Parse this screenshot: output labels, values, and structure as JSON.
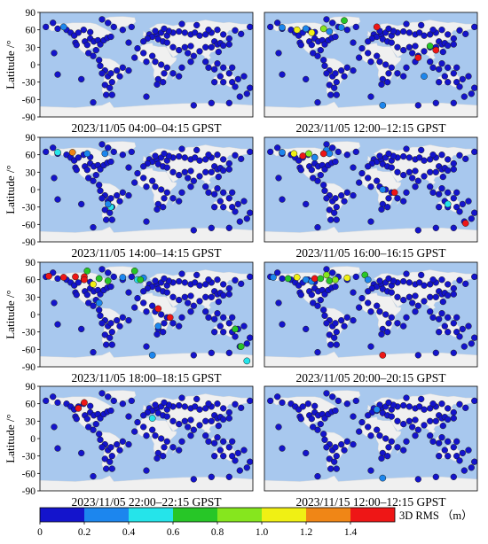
{
  "ylabel": "Latitude /°",
  "lat_ticks": [
    90,
    60,
    30,
    0,
    -30,
    -60,
    -90
  ],
  "colors": {
    "ocean": "#a8c8ee",
    "land": "#f0f0f0",
    "border": "#d8d8d8"
  },
  "colorbar": {
    "label": "3D RMS （m）",
    "tick_labels": [
      "0",
      "0.2",
      "0.4",
      "0.6",
      "0.8",
      "1.0",
      "1.2",
      "1.4"
    ],
    "bin_edges": [
      0,
      0.2,
      0.4,
      0.6,
      0.8,
      1.0,
      1.2,
      1.4,
      1.6
    ],
    "bin_colors": [
      "#1414cc",
      "#1c86ee",
      "#25e4ea",
      "#27c627",
      "#86e61e",
      "#f0f014",
      "#f08616",
      "#ee1616"
    ]
  },
  "chart_data": [
    {
      "type": "scatter",
      "title": "2023/11/05 04:00–04:15 GPST",
      "ylim": [
        -90,
        90
      ],
      "highlights": [
        {
          "lon": -140,
          "lat": 65,
          "rms": 0.35
        }
      ]
    },
    {
      "type": "scatter",
      "title": "2023/11/05 12:00–12:15 GPST",
      "ylim": [
        -90,
        90
      ],
      "highlights": [
        {
          "lon": -150,
          "lat": 64,
          "rms": 0.35
        },
        {
          "lon": -125,
          "lat": 60,
          "rms": 1.0
        },
        {
          "lon": -110,
          "lat": 62,
          "rms": 0.35
        },
        {
          "lon": -100,
          "lat": 55,
          "rms": 1.1
        },
        {
          "lon": -80,
          "lat": 62,
          "rms": 0.8
        },
        {
          "lon": -70,
          "lat": 57,
          "rms": 0.3
        },
        {
          "lon": -50,
          "lat": 64,
          "rms": 0.35
        },
        {
          "lon": -45,
          "lat": 76,
          "rms": 0.7
        },
        {
          "lon": 10,
          "lat": 65,
          "rms": 1.5
        },
        {
          "lon": 100,
          "lat": 32,
          "rms": 0.7
        },
        {
          "lon": 110,
          "lat": 25,
          "rms": 1.5
        },
        {
          "lon": 80,
          "lat": 12,
          "rms": 1.5
        },
        {
          "lon": 90,
          "lat": -20,
          "rms": 0.3
        },
        {
          "lon": 20,
          "lat": -70,
          "rms": 0.3
        }
      ]
    },
    {
      "type": "scatter",
      "title": "2023/11/05 14:00–14:15 GPST",
      "ylim": [
        -90,
        90
      ],
      "highlights": [
        {
          "lon": -150,
          "lat": 64,
          "rms": 0.5
        },
        {
          "lon": -125,
          "lat": 64,
          "rms": 1.3
        },
        {
          "lon": -100,
          "lat": 62,
          "rms": 0.35
        },
        {
          "lon": -70,
          "lat": 62,
          "rms": 0.3
        },
        {
          "lon": -60,
          "lat": -30,
          "rms": 0.45
        },
        {
          "lon": -65,
          "lat": -25,
          "rms": 0.35
        }
      ]
    },
    {
      "type": "scatter",
      "title": "2023/11/05 16:00–16:15 GPST",
      "ylim": [
        -90,
        90
      ],
      "highlights": [
        {
          "lon": -150,
          "lat": 64,
          "rms": 0.35
        },
        {
          "lon": -130,
          "lat": 62,
          "rms": 1.0
        },
        {
          "lon": -115,
          "lat": 58,
          "rms": 1.5
        },
        {
          "lon": -105,
          "lat": 62,
          "rms": 0.8
        },
        {
          "lon": -95,
          "lat": 55,
          "rms": 0.35
        },
        {
          "lon": -75,
          "lat": 68,
          "rms": 0.3
        },
        {
          "lon": -70,
          "lat": 62,
          "rms": 0.35
        },
        {
          "lon": -80,
          "lat": 62,
          "rms": 1.5
        },
        {
          "lon": 20,
          "lat": 0,
          "rms": 0.3
        },
        {
          "lon": 40,
          "lat": -5,
          "rms": 1.5
        },
        {
          "lon": 130,
          "lat": -25,
          "rms": 0.45
        },
        {
          "lon": 160,
          "lat": -58,
          "rms": 1.5
        }
      ]
    },
    {
      "type": "scatter",
      "title": "2023/11/05 18:00–18:15 GPST",
      "ylim": [
        -90,
        90
      ],
      "highlights": [
        {
          "lon": -165,
          "lat": 66,
          "rms": 1.5
        },
        {
          "lon": -140,
          "lat": 64,
          "rms": 1.5
        },
        {
          "lon": -120,
          "lat": 65,
          "rms": 1.5
        },
        {
          "lon": -105,
          "lat": 65,
          "rms": 1.5
        },
        {
          "lon": -100,
          "lat": 75,
          "rms": 0.7
        },
        {
          "lon": -105,
          "lat": 60,
          "rms": 1.5
        },
        {
          "lon": -90,
          "lat": 52,
          "rms": 1.0
        },
        {
          "lon": -80,
          "lat": 62,
          "rms": 0.7
        },
        {
          "lon": -65,
          "lat": 58,
          "rms": 0.6
        },
        {
          "lon": -40,
          "lat": 64,
          "rms": 0.35
        },
        {
          "lon": -15,
          "lat": 60,
          "rms": 0.45
        },
        {
          "lon": -5,
          "lat": 63,
          "rms": 0.35
        },
        {
          "lon": -20,
          "lat": 75,
          "rms": 0.6
        },
        {
          "lon": -10,
          "lat": 60,
          "rms": 0.7
        },
        {
          "lon": -80,
          "lat": 20,
          "rms": 0.35
        },
        {
          "lon": 20,
          "lat": 10,
          "rms": 1.5
        },
        {
          "lon": 40,
          "lat": -5,
          "rms": 1.5
        },
        {
          "lon": 20,
          "lat": -20,
          "rms": 0.35
        },
        {
          "lon": 150,
          "lat": -25,
          "rms": 0.6
        },
        {
          "lon": 160,
          "lat": -55,
          "rms": 0.6
        },
        {
          "lon": 170,
          "lat": -80,
          "rms": 0.4
        },
        {
          "lon": 10,
          "lat": -70,
          "rms": 0.35
        }
      ]
    },
    {
      "type": "scatter",
      "title": "2023/11/05 20:00–20:15 GPST",
      "ylim": [
        -90,
        90
      ],
      "highlights": [
        {
          "lon": -165,
          "lat": 64,
          "rms": 0.35
        },
        {
          "lon": -140,
          "lat": 62,
          "rms": 0.7
        },
        {
          "lon": -125,
          "lat": 64,
          "rms": 1.1
        },
        {
          "lon": -110,
          "lat": 60,
          "rms": 0.35
        },
        {
          "lon": -100,
          "lat": 57,
          "rms": 0.35
        },
        {
          "lon": -95,
          "lat": 62,
          "rms": 1.5
        },
        {
          "lon": -85,
          "lat": 62,
          "rms": 0.7
        },
        {
          "lon": -75,
          "lat": 68,
          "rms": 0.8
        },
        {
          "lon": -70,
          "lat": 58,
          "rms": 0.7
        },
        {
          "lon": -60,
          "lat": 60,
          "rms": 0.8
        },
        {
          "lon": -40,
          "lat": 63,
          "rms": 1.0
        },
        {
          "lon": -10,
          "lat": 68,
          "rms": 0.6
        },
        {
          "lon": -5,
          "lat": 60,
          "rms": 0.35
        },
        {
          "lon": 20,
          "lat": -70,
          "rms": 1.5
        }
      ]
    },
    {
      "type": "scatter",
      "title": "2023/11/05 22:00–22:15 GPST",
      "ylim": [
        -90,
        90
      ],
      "highlights": [
        {
          "lon": -115,
          "lat": 52,
          "rms": 1.5
        },
        {
          "lon": -105,
          "lat": 62,
          "rms": 1.5
        },
        {
          "lon": 10,
          "lat": 35,
          "rms": 0.4
        }
      ]
    },
    {
      "type": "scatter",
      "title": "2023/11/15 12:00–12:15 GPST",
      "ylim": [
        -90,
        90
      ],
      "highlights": [
        {
          "lon": 10,
          "lat": 50,
          "rms": 0.35
        },
        {
          "lon": 20,
          "lat": -68,
          "rms": 0.35
        }
      ]
    }
  ]
}
